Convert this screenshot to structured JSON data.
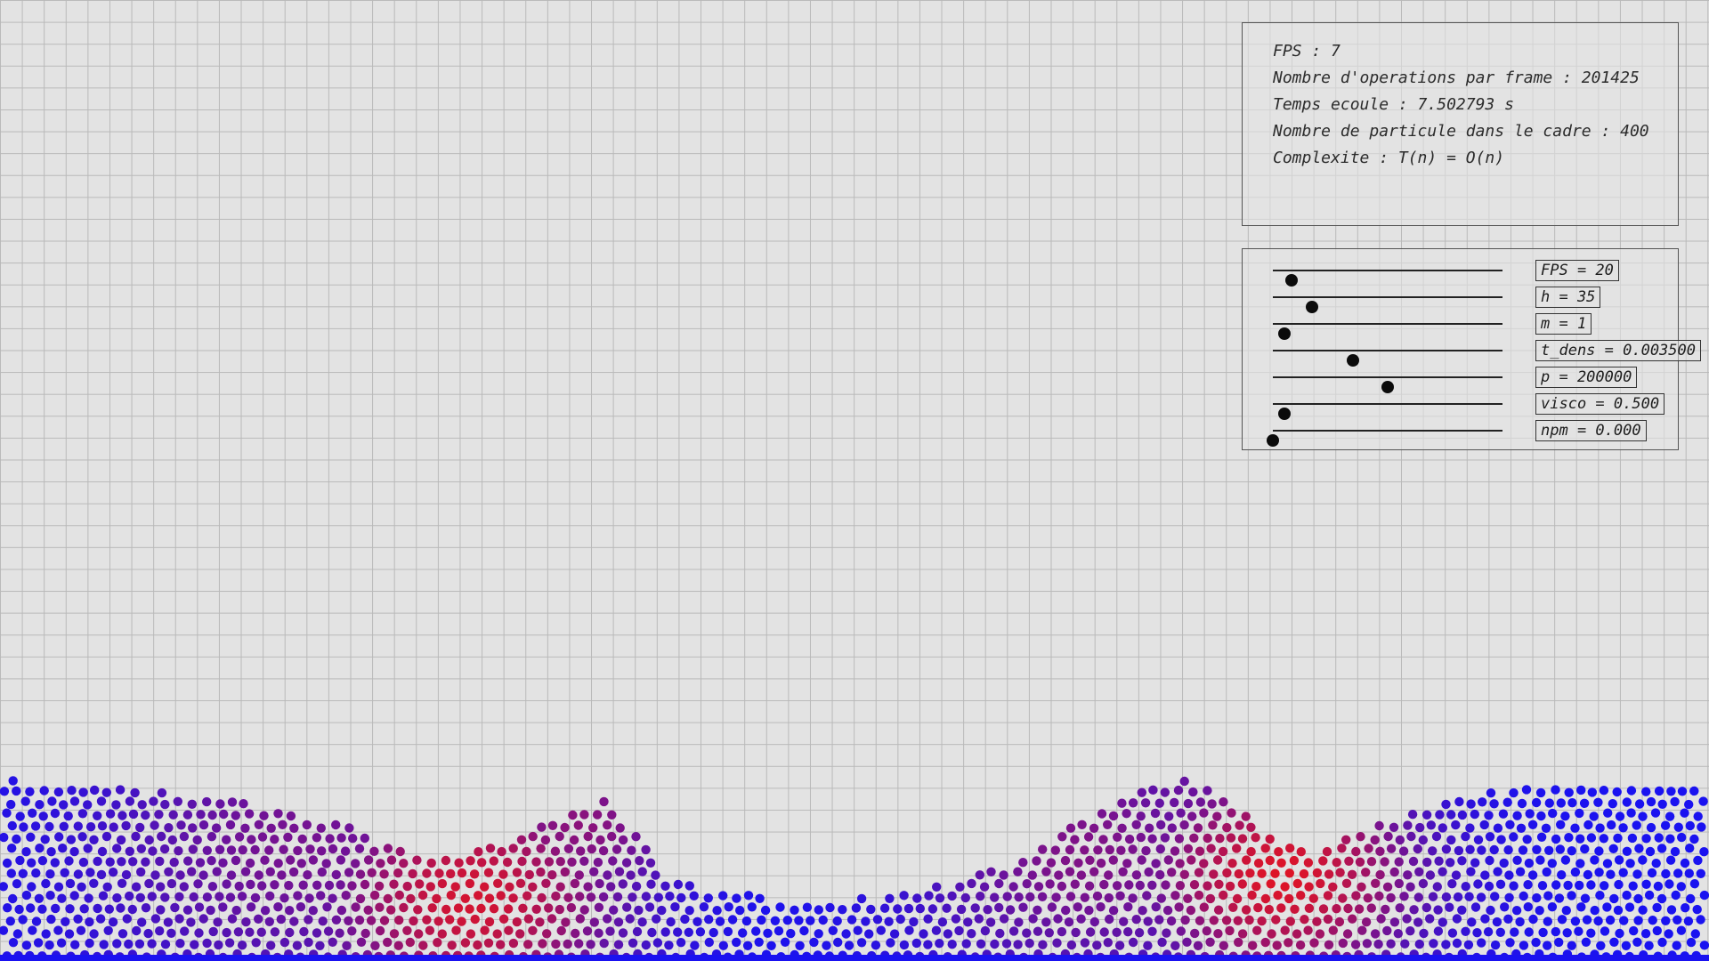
{
  "stats": {
    "fps_line": "FPS : 7",
    "ops_line": "Nombre d'operations par frame : 201425",
    "time_line": "Temps ecoule : 7.502793 s",
    "count_line": "Nombre de particule dans le cadre : 400",
    "complexity_line": "Complexite : T(n) = O(n)"
  },
  "controls": {
    "sliders": [
      {
        "label": "FPS = 20",
        "position": 0.08
      },
      {
        "label": "h = 35",
        "position": 0.17
      },
      {
        "label": "m = 1",
        "position": 0.05
      },
      {
        "label": "t_dens = 0.003500",
        "position": 0.35
      },
      {
        "label": "p = 200000",
        "position": 0.5
      },
      {
        "label": "visco = 0.500",
        "position": 0.05
      },
      {
        "label": "npm = 0.000",
        "position": 0.0
      }
    ]
  },
  "particles": {
    "low_density_color": "#1a12f0",
    "high_density_color": "#e8141c"
  },
  "colors": {
    "background": "#e3e3e3",
    "grid": "#b9b9b9"
  }
}
